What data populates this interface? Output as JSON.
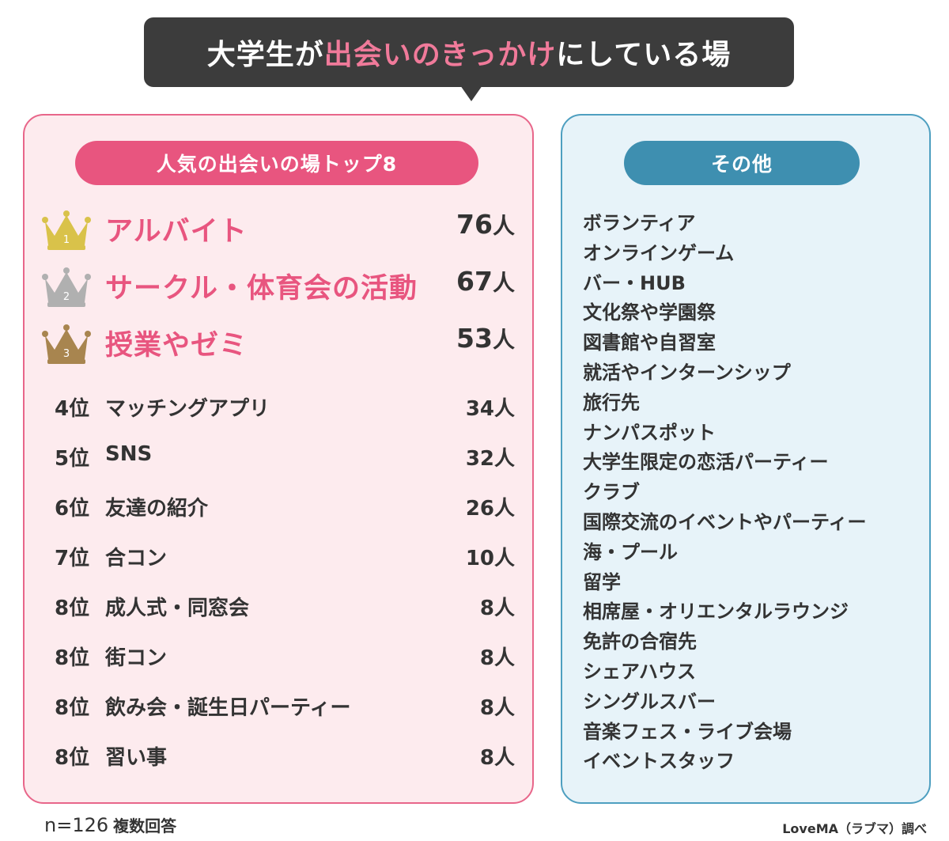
{
  "title": {
    "part1": "大学生が",
    "highlight": "出会いのきっかけ",
    "part2": "にしている場"
  },
  "colors": {
    "title_bg": "#3c3c3c",
    "highlight": "#f07a9a",
    "left_accent": "#e8557f",
    "left_bg": "#fdebee",
    "right_accent": "#3e8fb0",
    "right_bg": "#e7f3f9",
    "gold": "#d9c24a",
    "silver": "#b0b0b0",
    "bronze": "#a8854f"
  },
  "left_panel": {
    "heading": "人気の出会いの場トップ8",
    "top3": [
      {
        "rank_num": "1",
        "crown": "gold-crown-icon",
        "name": "アルバイト",
        "count": "76",
        "unit": "人"
      },
      {
        "rank_num": "2",
        "crown": "silver-crown-icon",
        "name": "サークル・体育会の活動",
        "count": "67",
        "unit": "人"
      },
      {
        "rank_num": "3",
        "crown": "bronze-crown-icon",
        "name": "授業やゼミ",
        "count": "53",
        "unit": "人"
      }
    ],
    "ranks": [
      {
        "rank": "4位",
        "name": "マッチングアプリ",
        "count": "34人"
      },
      {
        "rank": "5位",
        "name": "SNS",
        "count": "32人"
      },
      {
        "rank": "6位",
        "name": "友達の紹介",
        "count": "26人"
      },
      {
        "rank": "7位",
        "name": "合コン",
        "count": "10人"
      },
      {
        "rank": "8位",
        "name": "成人式・同窓会",
        "count": "8人"
      },
      {
        "rank": "8位",
        "name": "街コン",
        "count": "8人"
      },
      {
        "rank": "8位",
        "name": "飲み会・誕生日パーティー",
        "count": "8人"
      },
      {
        "rank": "8位",
        "name": "習い事",
        "count": "8人"
      }
    ]
  },
  "right_panel": {
    "heading": "その他",
    "items": [
      "ボランティア",
      "オンラインゲーム",
      "バー・HUB",
      "文化祭や学園祭",
      "図書館や自習室",
      "就活やインターンシップ",
      "旅行先",
      "ナンパスポット",
      "大学生限定の恋活パーティー",
      "クラブ",
      "国際交流のイベントやパーティー",
      "海・プール",
      "留学",
      "相席屋・オリエンタルラウンジ",
      "免許の合宿先",
      "シェアハウス",
      "シングルスバー",
      "音楽フェス・ライブ会場",
      "イベントスタッフ"
    ]
  },
  "footer": {
    "n": "n=126",
    "note": "複数回答",
    "source": "LoveMA（ラブマ）調べ"
  }
}
